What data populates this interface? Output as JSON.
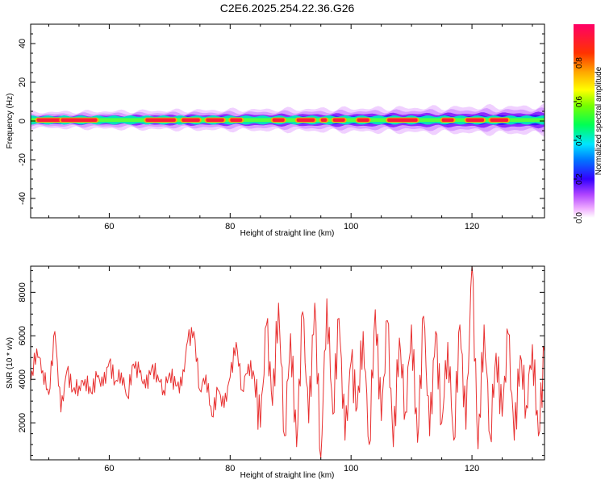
{
  "title": "C2E6.2025.254.22.36.G26",
  "chart_data": [
    {
      "type": "heatmap",
      "title": "C2E6.2025.254.22.36.G26",
      "xlabel": "Height of straight line (km)",
      "ylabel": "Frequency (Hz)",
      "xlim": [
        47,
        132
      ],
      "ylim": [
        -50,
        50
      ],
      "xticks": [
        60,
        80,
        100,
        120
      ],
      "yticks": [
        -40,
        -20,
        0,
        20,
        40
      ],
      "colorbar": {
        "label": "Normalized spectral amplitude",
        "range": [
          0,
          1
        ],
        "ticks": [
          "0.0",
          "0.2",
          "0.4",
          "0.6",
          "0.8"
        ]
      },
      "band": {
        "center_frequency_hz": 0.5,
        "core_halfwidth_hz": 2,
        "spread_halfwidth_hz_start": 4,
        "spread_halfwidth_hz_end": 7,
        "peak_segments_km": [
          [
            48,
            52
          ],
          [
            52,
            58
          ],
          [
            66,
            71
          ],
          [
            72,
            75
          ],
          [
            76,
            79
          ],
          [
            80,
            82
          ],
          [
            87,
            89
          ],
          [
            91,
            94
          ],
          [
            95,
            96
          ],
          [
            97,
            99
          ],
          [
            101,
            103
          ],
          [
            106,
            111
          ],
          [
            115,
            117
          ],
          [
            119,
            122
          ],
          [
            123,
            126
          ]
        ]
      }
    },
    {
      "type": "line",
      "xlabel": "Height of straight line (km)",
      "ylabel": "SNR (10 * v/v)",
      "xlim": [
        47,
        132
      ],
      "ylim": [
        300,
        9200
      ],
      "xticks": [
        60,
        80,
        100,
        120
      ],
      "yticks": [
        2000,
        4000,
        6000,
        8000
      ],
      "color": "#e83030",
      "x": [
        47,
        48,
        49,
        50,
        51,
        52,
        53,
        54,
        55,
        56,
        57,
        58,
        59,
        60,
        61,
        62,
        63,
        64,
        65,
        66,
        67,
        68,
        69,
        70,
        71,
        72,
        73,
        74,
        75,
        76,
        77,
        78,
        79,
        80,
        81,
        82,
        83,
        84,
        85,
        86,
        87,
        88,
        89,
        90,
        91,
        92,
        93,
        94,
        95,
        96,
        97,
        98,
        99,
        100,
        101,
        102,
        103,
        104,
        105,
        106,
        107,
        108,
        109,
        110,
        111,
        112,
        113,
        114,
        115,
        116,
        117,
        118,
        119,
        120,
        121,
        122,
        123,
        124,
        125,
        126,
        127,
        128,
        129,
        130,
        131,
        132
      ],
      "values": [
        3900,
        5400,
        4400,
        3300,
        6200,
        2500,
        4400,
        3500,
        3700,
        4000,
        3400,
        4100,
        3700,
        4800,
        3900,
        4300,
        3200,
        4700,
        4300,
        3600,
        4500,
        4200,
        3500,
        4300,
        3700,
        3700,
        5800,
        6200,
        3500,
        4200,
        2300,
        3500,
        2700,
        4100,
        5700,
        3500,
        4700,
        4100,
        1800,
        6500,
        2800,
        7500,
        1400,
        6100,
        900,
        7100,
        2000,
        7500,
        400,
        7700,
        2400,
        6800,
        1200,
        4800,
        2700,
        6200,
        1000,
        7200,
        2100,
        6700,
        900,
        5900,
        2500,
        6500,
        1100,
        6900,
        1400,
        6200,
        2000,
        5700,
        1200,
        6500,
        1700,
        9200,
        800,
        6500,
        1400,
        5200,
        2300,
        6100,
        1200,
        5100,
        2800,
        5600,
        1400,
        5300
      ]
    }
  ]
}
